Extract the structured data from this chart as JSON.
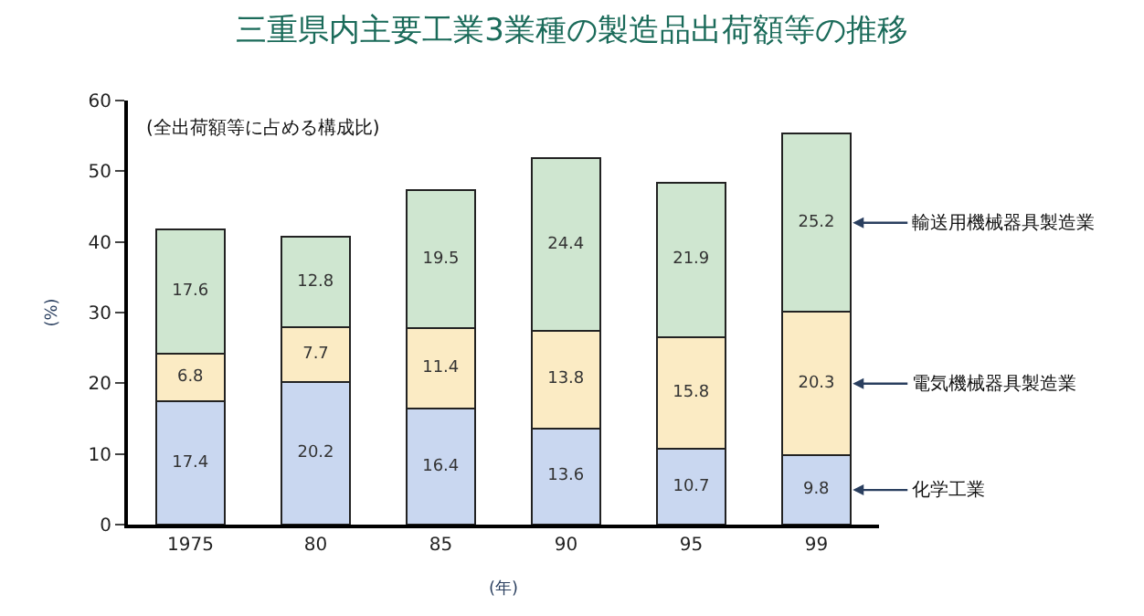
{
  "chart_data": {
    "type": "bar",
    "stacked": true,
    "title": "三重県内主要工業3業種の製造品出荷額等の推移",
    "ylabel": "(%)",
    "xlabel": "(年)",
    "annotations": [
      "(全出荷額等に占める構成比)"
    ],
    "categories": [
      "1975",
      "80",
      "85",
      "90",
      "95",
      "99"
    ],
    "series": [
      {
        "name": "化学工業",
        "color": "#c9d7f0",
        "values": [
          17.4,
          20.2,
          16.4,
          13.6,
          10.7,
          9.8
        ]
      },
      {
        "name": "電気機械器具製造業",
        "color": "#fbebc4",
        "values": [
          6.8,
          7.7,
          11.4,
          13.8,
          15.8,
          20.3
        ]
      },
      {
        "name": "輸送用機械器具製造業",
        "color": "#cfe6d0",
        "values": [
          17.6,
          12.8,
          19.5,
          24.4,
          21.9,
          25.2
        ]
      }
    ],
    "data_labels": true,
    "ylim": [
      0,
      60
    ],
    "yticks": [
      0,
      10,
      20,
      30,
      40,
      50,
      60
    ],
    "legend": false
  }
}
